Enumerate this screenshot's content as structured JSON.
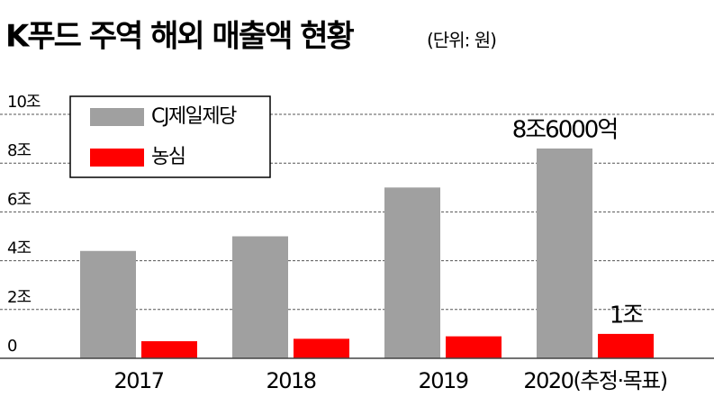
{
  "chart_data": {
    "type": "bar",
    "title": "K푸드 주역 해외 매출액 현황",
    "subtitle": "(단위: 원)",
    "categories": [
      "2017",
      "2018",
      "2019",
      "2020(추정·목표)"
    ],
    "series": [
      {
        "name": "CJ제일제당",
        "color": "#a0a0a0",
        "values": [
          4.4,
          5.0,
          7.0,
          8.6
        ],
        "value_labels": [
          null,
          null,
          null,
          "8조6000억"
        ]
      },
      {
        "name": "농심",
        "color": "#ff0000",
        "values": [
          0.7,
          0.8,
          0.9,
          1.0
        ],
        "value_labels": [
          null,
          null,
          null,
          "1조"
        ]
      }
    ],
    "ylim": [
      0,
      10
    ],
    "yticks": [
      {
        "value": 0,
        "label": "0"
      },
      {
        "value": 2,
        "label": "2조"
      },
      {
        "value": 4,
        "label": "4조"
      },
      {
        "value": 6,
        "label": "6조"
      },
      {
        "value": 8,
        "label": "8조"
      },
      {
        "value": 10,
        "label": "10조"
      }
    ],
    "grid": true,
    "legend": "upper-left"
  }
}
